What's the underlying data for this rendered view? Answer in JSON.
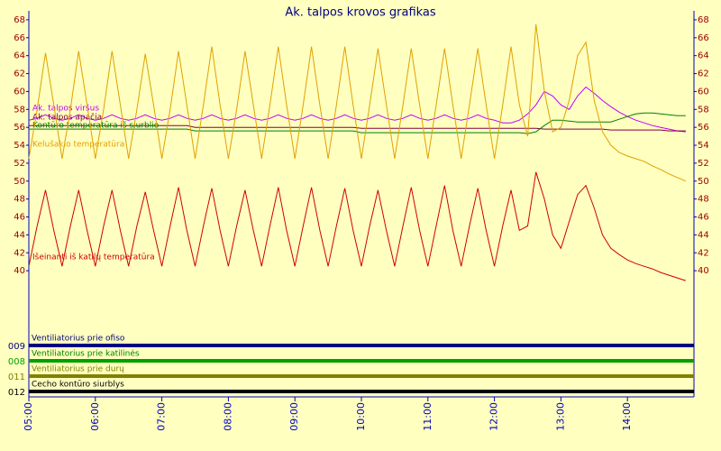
{
  "chart_data": {
    "type": "line",
    "title": "Ak. talpos krovos grafikas",
    "x": [
      5,
      5.125,
      5.25,
      5.375,
      5.5,
      5.625,
      5.75,
      5.875,
      6,
      6.125,
      6.25,
      6.375,
      6.5,
      6.625,
      6.75,
      6.875,
      7,
      7.125,
      7.25,
      7.375,
      7.5,
      7.625,
      7.75,
      7.875,
      8,
      8.125,
      8.25,
      8.375,
      8.5,
      8.625,
      8.75,
      8.875,
      9,
      9.125,
      9.25,
      9.375,
      9.5,
      9.625,
      9.75,
      9.875,
      10,
      10.125,
      10.25,
      10.375,
      10.5,
      10.625,
      10.75,
      10.875,
      11,
      11.125,
      11.25,
      11.375,
      11.5,
      11.625,
      11.75,
      11.875,
      12,
      12.125,
      12.25,
      12.375,
      12.5,
      12.625,
      12.75,
      12.875,
      13,
      13.125,
      13.25,
      13.375,
      13.5,
      13.625,
      13.75,
      13.875,
      14,
      14.125,
      14.25,
      14.375,
      14.5,
      14.625,
      14.75,
      14.875
    ],
    "xlim": [
      5,
      15
    ],
    "xticks": [
      {
        "value": 5,
        "label": "05:00"
      },
      {
        "value": 6,
        "label": "06:00"
      },
      {
        "value": 7,
        "label": "07:00"
      },
      {
        "value": 8,
        "label": "08:00"
      },
      {
        "value": 9,
        "label": "09:00"
      },
      {
        "value": 10,
        "label": "10:00"
      },
      {
        "value": 11,
        "label": "11:00"
      },
      {
        "value": 12,
        "label": "12:00"
      },
      {
        "value": 13,
        "label": "13:00"
      },
      {
        "value": 14,
        "label": "14:00"
      }
    ],
    "ylim": [
      38,
      69
    ],
    "yticks": [
      40,
      42,
      44,
      46,
      48,
      50,
      52,
      54,
      56,
      58,
      60,
      62,
      64,
      66,
      68
    ],
    "series": [
      {
        "name": "Ak. talpos viršus",
        "color": "#c000ff",
        "values": [
          56.8,
          57,
          57.4,
          57,
          56.8,
          57,
          57.4,
          57,
          56.8,
          57,
          57.4,
          57,
          56.8,
          57,
          57.4,
          57,
          56.8,
          57,
          57.4,
          57,
          56.8,
          57,
          57.4,
          57,
          56.8,
          57,
          57.4,
          57,
          56.8,
          57,
          57.4,
          57,
          56.8,
          57,
          57.4,
          57,
          56.8,
          57,
          57.4,
          57,
          56.8,
          57,
          57.4,
          57,
          56.8,
          57,
          57.4,
          57,
          56.8,
          57,
          57.4,
          57,
          56.8,
          57,
          57.4,
          57,
          56.8,
          56.5,
          56.5,
          56.8,
          57.5,
          58.5,
          60,
          59.5,
          58.5,
          58,
          59.5,
          60.5,
          59.8,
          59,
          58.3,
          57.7,
          57.2,
          56.8,
          56.5,
          56.2,
          56,
          55.8,
          55.6,
          55.5
        ]
      },
      {
        "name": "Ak. talpos apačia",
        "color": "#800040",
        "values": [
          56.2,
          56.2,
          56.2,
          56.2,
          56.2,
          56.2,
          56.2,
          56.2,
          56.2,
          56.2,
          56.2,
          56.2,
          56.2,
          56.2,
          56.2,
          56.2,
          56.2,
          56.2,
          56.2,
          56.2,
          56,
          56,
          56,
          56,
          56,
          56,
          56,
          56,
          56,
          56,
          56,
          56,
          56,
          56,
          56,
          56,
          56,
          56,
          56,
          56,
          55.9,
          55.9,
          55.9,
          55.9,
          55.9,
          55.9,
          55.9,
          55.9,
          55.9,
          55.9,
          55.9,
          55.9,
          55.9,
          55.9,
          55.9,
          55.9,
          55.9,
          55.9,
          55.9,
          55.9,
          55.9,
          55.9,
          55.8,
          55.8,
          55.8,
          55.8,
          55.8,
          55.8,
          55.8,
          55.8,
          55.7,
          55.7,
          55.7,
          55.7,
          55.7,
          55.7,
          55.7,
          55.6,
          55.6,
          55.6
        ]
      },
      {
        "name": "Kontūro temperatūra iš siurblio",
        "color": "#008000",
        "values": [
          55.8,
          55.8,
          55.8,
          55.8,
          55.8,
          55.8,
          55.8,
          55.8,
          55.8,
          55.8,
          55.8,
          55.8,
          55.8,
          55.8,
          55.8,
          55.8,
          55.8,
          55.8,
          55.8,
          55.8,
          55.6,
          55.6,
          55.6,
          55.6,
          55.6,
          55.6,
          55.6,
          55.6,
          55.6,
          55.6,
          55.6,
          55.6,
          55.6,
          55.6,
          55.6,
          55.6,
          55.6,
          55.6,
          55.6,
          55.6,
          55.4,
          55.4,
          55.4,
          55.4,
          55.4,
          55.4,
          55.4,
          55.4,
          55.4,
          55.4,
          55.4,
          55.4,
          55.4,
          55.4,
          55.4,
          55.4,
          55.4,
          55.4,
          55.4,
          55.4,
          55.3,
          55.5,
          56.2,
          56.8,
          56.8,
          56.7,
          56.6,
          56.6,
          56.6,
          56.6,
          56.6,
          56.9,
          57.2,
          57.5,
          57.6,
          57.6,
          57.5,
          57.4,
          57.3,
          57.3
        ]
      },
      {
        "name": "Kelušakio temperatūra",
        "color": "#e0a000",
        "values": [
          52.5,
          58,
          64.3,
          58.5,
          52.5,
          58,
          64.5,
          58.5,
          52.5,
          58,
          64.5,
          58.5,
          52.5,
          58,
          64.2,
          58.5,
          52.5,
          58,
          64.5,
          58.5,
          52.5,
          58.5,
          65,
          58.5,
          52.5,
          58,
          64.5,
          58.5,
          52.5,
          58.5,
          65,
          58.5,
          52.5,
          58.5,
          65,
          58.5,
          52.5,
          58.5,
          65,
          58.5,
          52.5,
          58.5,
          64.8,
          58.5,
          52.5,
          58.5,
          64.8,
          58.5,
          52.5,
          58.5,
          64.8,
          58.5,
          52.5,
          58.5,
          64.8,
          58.5,
          52.5,
          58.5,
          65,
          58.5,
          55,
          67.5,
          60,
          55.5,
          56,
          59,
          64,
          65.5,
          59,
          55.5,
          54,
          53.2,
          52.8,
          52.5,
          52.2,
          51.7,
          51.3,
          50.8,
          50.4,
          50
        ]
      },
      {
        "name": "Išeinanti iš katilų temperatūra",
        "color": "#d00000",
        "values": [
          40.5,
          45,
          49,
          44.5,
          40.5,
          45,
          49,
          44.5,
          40.5,
          45,
          49,
          44.5,
          40.5,
          45,
          48.8,
          44.5,
          40.5,
          45,
          49.3,
          44.5,
          40.5,
          45,
          49.2,
          44.5,
          40.5,
          45,
          49,
          44.5,
          40.5,
          45,
          49.3,
          44.5,
          40.5,
          45,
          49.3,
          44.5,
          40.5,
          45,
          49.2,
          44.5,
          40.5,
          45,
          49,
          44.5,
          40.5,
          45,
          49.3,
          44.5,
          40.5,
          45,
          49.5,
          44.5,
          40.5,
          45,
          49.2,
          44.5,
          40.5,
          45,
          49,
          44.5,
          45,
          51,
          48,
          44,
          42.5,
          45.5,
          48.5,
          49.5,
          47,
          44,
          42.5,
          41.8,
          41.2,
          40.8,
          40.5,
          40.2,
          39.8,
          39.5,
          39.2,
          38.9
        ]
      }
    ],
    "digital_channels": [
      {
        "id": "009",
        "name": "Ventiliatorius prie ofiso",
        "color": "#000080"
      },
      {
        "id": "008",
        "name": "Ventiliatorius prie katilinės",
        "color": "#00a000"
      },
      {
        "id": "011",
        "name": "Ventiliatorius prie durų",
        "color": "#808000"
      },
      {
        "id": "012",
        "name": "Cecho kontūro siurblys",
        "color": "#000000"
      }
    ]
  }
}
